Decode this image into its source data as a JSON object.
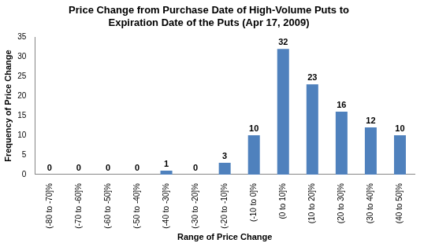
{
  "chart_data": {
    "type": "bar",
    "title": [
      "Price Change from Purchase Date of High-Volume Puts to",
      "Expiration Date of the Puts (Apr 17, 2009)"
    ],
    "x_label": "Range of Price Change",
    "y_label": "Frequency of Price Change",
    "categories": [
      "(-80 to -70]%",
      "(-70 to -60]%",
      "(-60 to -50]%",
      "(-50 to -40]%",
      "(-40 to -30]%",
      "(-30 to -20]%",
      "(-20 to -10]%",
      "(-10 to 0]%",
      "(0 to 10]%",
      "(10 to 20]%",
      "(20 to 30]%",
      "(30 to 40]%",
      "(40 to 50]%"
    ],
    "values": [
      0,
      0,
      0,
      0,
      1,
      0,
      3,
      10,
      32,
      23,
      16,
      12,
      10
    ],
    "color": "#4f81bd",
    "ylim": [
      0,
      35
    ],
    "yticks": [
      0,
      5,
      10,
      15,
      20,
      25,
      30,
      35
    ],
    "grid": false,
    "data_labels": true
  }
}
